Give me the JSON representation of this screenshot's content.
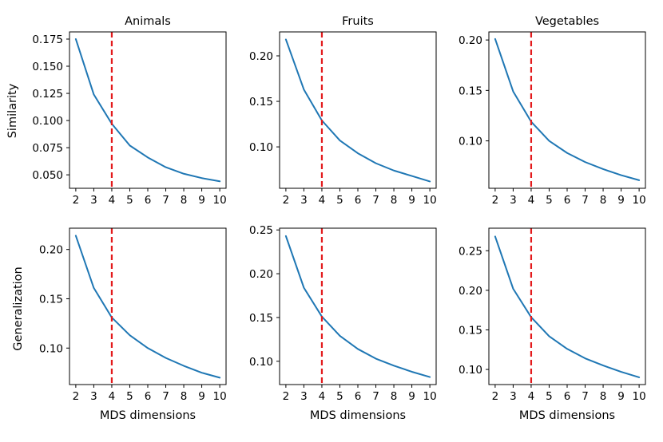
{
  "chart_data": {
    "type": "line",
    "colors": {
      "series": "#1f77b4",
      "marker": "#e31a1c"
    },
    "x": [
      2,
      3,
      4,
      5,
      6,
      7,
      8,
      9,
      10
    ],
    "xticks": [
      "2",
      "3",
      "4",
      "5",
      "6",
      "7",
      "8",
      "9",
      "10"
    ],
    "marker_x": 4,
    "row_labels": [
      "Similarity",
      "Generalization"
    ],
    "xlabel": "MDS dimensions",
    "panels": [
      {
        "id": "similarity-animals",
        "title": "Animals",
        "xlim": [
          1.65,
          10.35
        ],
        "ylim": [
          0.0376,
          0.1816
        ],
        "yticks": [
          0.05,
          0.075,
          0.1,
          0.125,
          0.15,
          0.175
        ],
        "ytick_labels": [
          "0.050",
          "0.075",
          "0.100",
          "0.125",
          "0.150",
          "0.175"
        ],
        "values": [
          0.175,
          0.124,
          0.097,
          0.077,
          0.066,
          0.057,
          0.051,
          0.047,
          0.044
        ]
      },
      {
        "id": "similarity-fruits",
        "title": "Fruits",
        "xlim": [
          1.65,
          10.35
        ],
        "ylim": [
          0.0545,
          0.2263
        ],
        "yticks": [
          0.1,
          0.15,
          0.2
        ],
        "ytick_labels": [
          "0.10",
          "0.15",
          "0.20"
        ],
        "values": [
          0.218,
          0.163,
          0.129,
          0.107,
          0.093,
          0.082,
          0.074,
          0.068,
          0.062
        ]
      },
      {
        "id": "similarity-vegetables",
        "title": "Vegetables",
        "xlim": [
          1.65,
          10.35
        ],
        "ylim": [
          0.053,
          0.208
        ],
        "yticks": [
          0.1,
          0.15,
          0.2
        ],
        "ytick_labels": [
          "0.10",
          "0.15",
          "0.20"
        ],
        "values": [
          0.201,
          0.149,
          0.119,
          0.1,
          0.088,
          0.079,
          0.072,
          0.066,
          0.061
        ]
      },
      {
        "id": "generalization-animals",
        "title": "",
        "xlim": [
          1.65,
          10.35
        ],
        "ylim": [
          0.063,
          0.2216
        ],
        "yticks": [
          0.1,
          0.15,
          0.2
        ],
        "ytick_labels": [
          "0.10",
          "0.15",
          "0.20"
        ],
        "values": [
          0.214,
          0.161,
          0.131,
          0.113,
          0.1,
          0.09,
          0.082,
          0.075,
          0.07
        ]
      },
      {
        "id": "generalization-fruits",
        "title": "",
        "xlim": [
          1.65,
          10.35
        ],
        "ylim": [
          0.0734,
          0.252
        ],
        "yticks": [
          0.1,
          0.15,
          0.2,
          0.25
        ],
        "ytick_labels": [
          "0.10",
          "0.15",
          "0.20",
          "0.25"
        ],
        "values": [
          0.243,
          0.184,
          0.151,
          0.129,
          0.114,
          0.103,
          0.095,
          0.088,
          0.082
        ]
      },
      {
        "id": "generalization-vegetables",
        "title": "",
        "xlim": [
          1.65,
          10.35
        ],
        "ylim": [
          0.0809,
          0.2785
        ],
        "yticks": [
          0.1,
          0.15,
          0.2,
          0.25
        ],
        "ytick_labels": [
          "0.10",
          "0.15",
          "0.20",
          "0.25"
        ],
        "values": [
          0.268,
          0.202,
          0.166,
          0.142,
          0.126,
          0.114,
          0.105,
          0.097,
          0.09
        ]
      }
    ]
  }
}
